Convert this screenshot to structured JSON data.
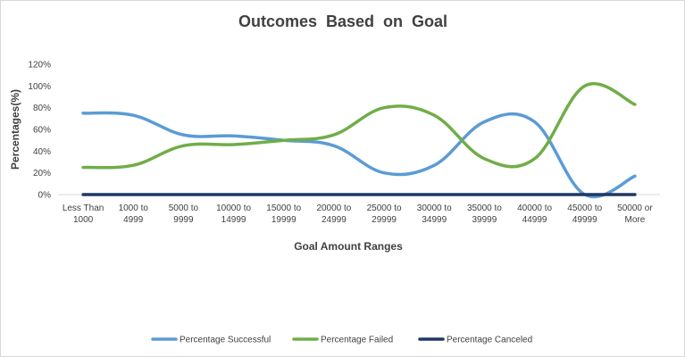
{
  "chart_data": {
    "type": "line",
    "title": "Outcomes  Based  on  Goal",
    "xlabel": "Goal Amount Ranges",
    "ylabel": "Percentages(%)",
    "ylim": [
      0,
      1.2
    ],
    "yticks": [
      0,
      0.2,
      0.4,
      0.6,
      0.8,
      1.0,
      1.2
    ],
    "ytick_labels": [
      "0%",
      "20%",
      "40%",
      "60%",
      "80%",
      "100%",
      "120%"
    ],
    "grid": false,
    "legend_position": "bottom",
    "categories": [
      [
        "Less Than",
        "1000"
      ],
      [
        "1000 to",
        "4999"
      ],
      [
        "5000 to",
        "9999"
      ],
      [
        "10000 to",
        "14999"
      ],
      [
        "15000 to",
        "19999"
      ],
      [
        "20000 to",
        "24999"
      ],
      [
        "25000 to",
        "29999"
      ],
      [
        "30000 to",
        "34999"
      ],
      [
        "35000 to",
        "39999"
      ],
      [
        "40000 to",
        "44999"
      ],
      [
        "45000 to",
        "49999"
      ],
      [
        "50000 or",
        "More"
      ]
    ],
    "series": [
      {
        "name": "Percentage Successful",
        "color": "#5b9bd5",
        "values": [
          0.75,
          0.73,
          0.55,
          0.54,
          0.5,
          0.45,
          0.2,
          0.27,
          0.67,
          0.67,
          0.0,
          0.17
        ]
      },
      {
        "name": "Percentage Failed",
        "color": "#70ad47",
        "values": [
          0.25,
          0.27,
          0.45,
          0.46,
          0.5,
          0.55,
          0.8,
          0.73,
          0.33,
          0.33,
          1.0,
          0.83
        ]
      },
      {
        "name": "Percentage Canceled",
        "color": "#1f3864",
        "values": [
          0,
          0,
          0,
          0,
          0,
          0,
          0,
          0,
          0,
          0,
          0,
          0
        ]
      }
    ]
  }
}
